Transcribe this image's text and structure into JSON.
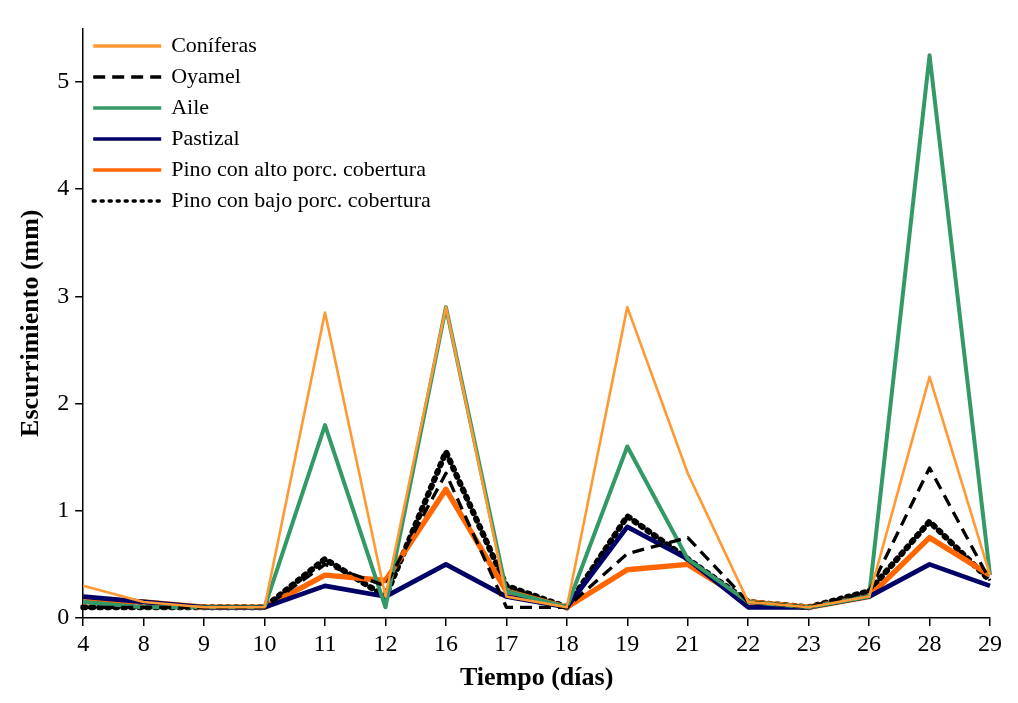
{
  "chart_data": {
    "type": "line",
    "xlabel": "Tiempo (días)",
    "ylabel": "Escurrimiento (mm)",
    "categories": [
      "4",
      "8",
      "9",
      "10",
      "11",
      "12",
      "16",
      "17",
      "18",
      "19",
      "21",
      "22",
      "23",
      "26",
      "28",
      "29"
    ],
    "ylim": [
      0,
      5.5
    ],
    "yticks": [
      0,
      1,
      2,
      3,
      4,
      5
    ],
    "grid": false,
    "legend": "top left",
    "marker": "none",
    "series": [
      {
        "name": "Coníferas",
        "color": "#ff9933",
        "line_style": "solid",
        "values": [
          0.3,
          0.15,
          0.1,
          0.1,
          2.85,
          0.2,
          2.9,
          0.2,
          0.1,
          2.9,
          1.35,
          0.15,
          0.1,
          0.2,
          2.25,
          0.4
        ]
      },
      {
        "name": "Oyamel",
        "color": "#000000",
        "line_style": "dashed",
        "values": [
          0.1,
          0.1,
          0.1,
          0.1,
          0.5,
          0.3,
          1.35,
          0.1,
          0.1,
          0.6,
          0.75,
          0.15,
          0.1,
          0.25,
          1.4,
          0.35
        ]
      },
      {
        "name": "Aile",
        "color": "#339966",
        "line_style": "solid",
        "values": [
          0.15,
          0.1,
          0.1,
          0.1,
          1.8,
          0.1,
          2.9,
          0.25,
          0.1,
          1.6,
          0.55,
          0.15,
          0.1,
          0.2,
          5.25,
          0.4
        ]
      },
      {
        "name": "Pastizal",
        "color": "#000066",
        "line_style": "solid",
        "values": [
          0.2,
          0.15,
          0.1,
          0.1,
          0.3,
          0.2,
          0.5,
          0.2,
          0.1,
          0.85,
          0.55,
          0.1,
          0.1,
          0.2,
          0.5,
          0.3
        ]
      },
      {
        "name": "Pino con alto porc. cobertura",
        "color": "#ff6600",
        "line_style": "solid",
        "values": [
          0.15,
          0.15,
          0.1,
          0.1,
          0.4,
          0.35,
          1.2,
          0.25,
          0.1,
          0.45,
          0.5,
          0.15,
          0.1,
          0.2,
          0.75,
          0.4
        ]
      },
      {
        "name": "Pino con bajo porc. cobertura",
        "color": "#000000",
        "line_style": "dotted",
        "values": [
          0.1,
          0.1,
          0.1,
          0.1,
          0.55,
          0.2,
          1.55,
          0.3,
          0.1,
          0.95,
          0.55,
          0.15,
          0.1,
          0.25,
          0.9,
          0.35
        ]
      }
    ]
  }
}
